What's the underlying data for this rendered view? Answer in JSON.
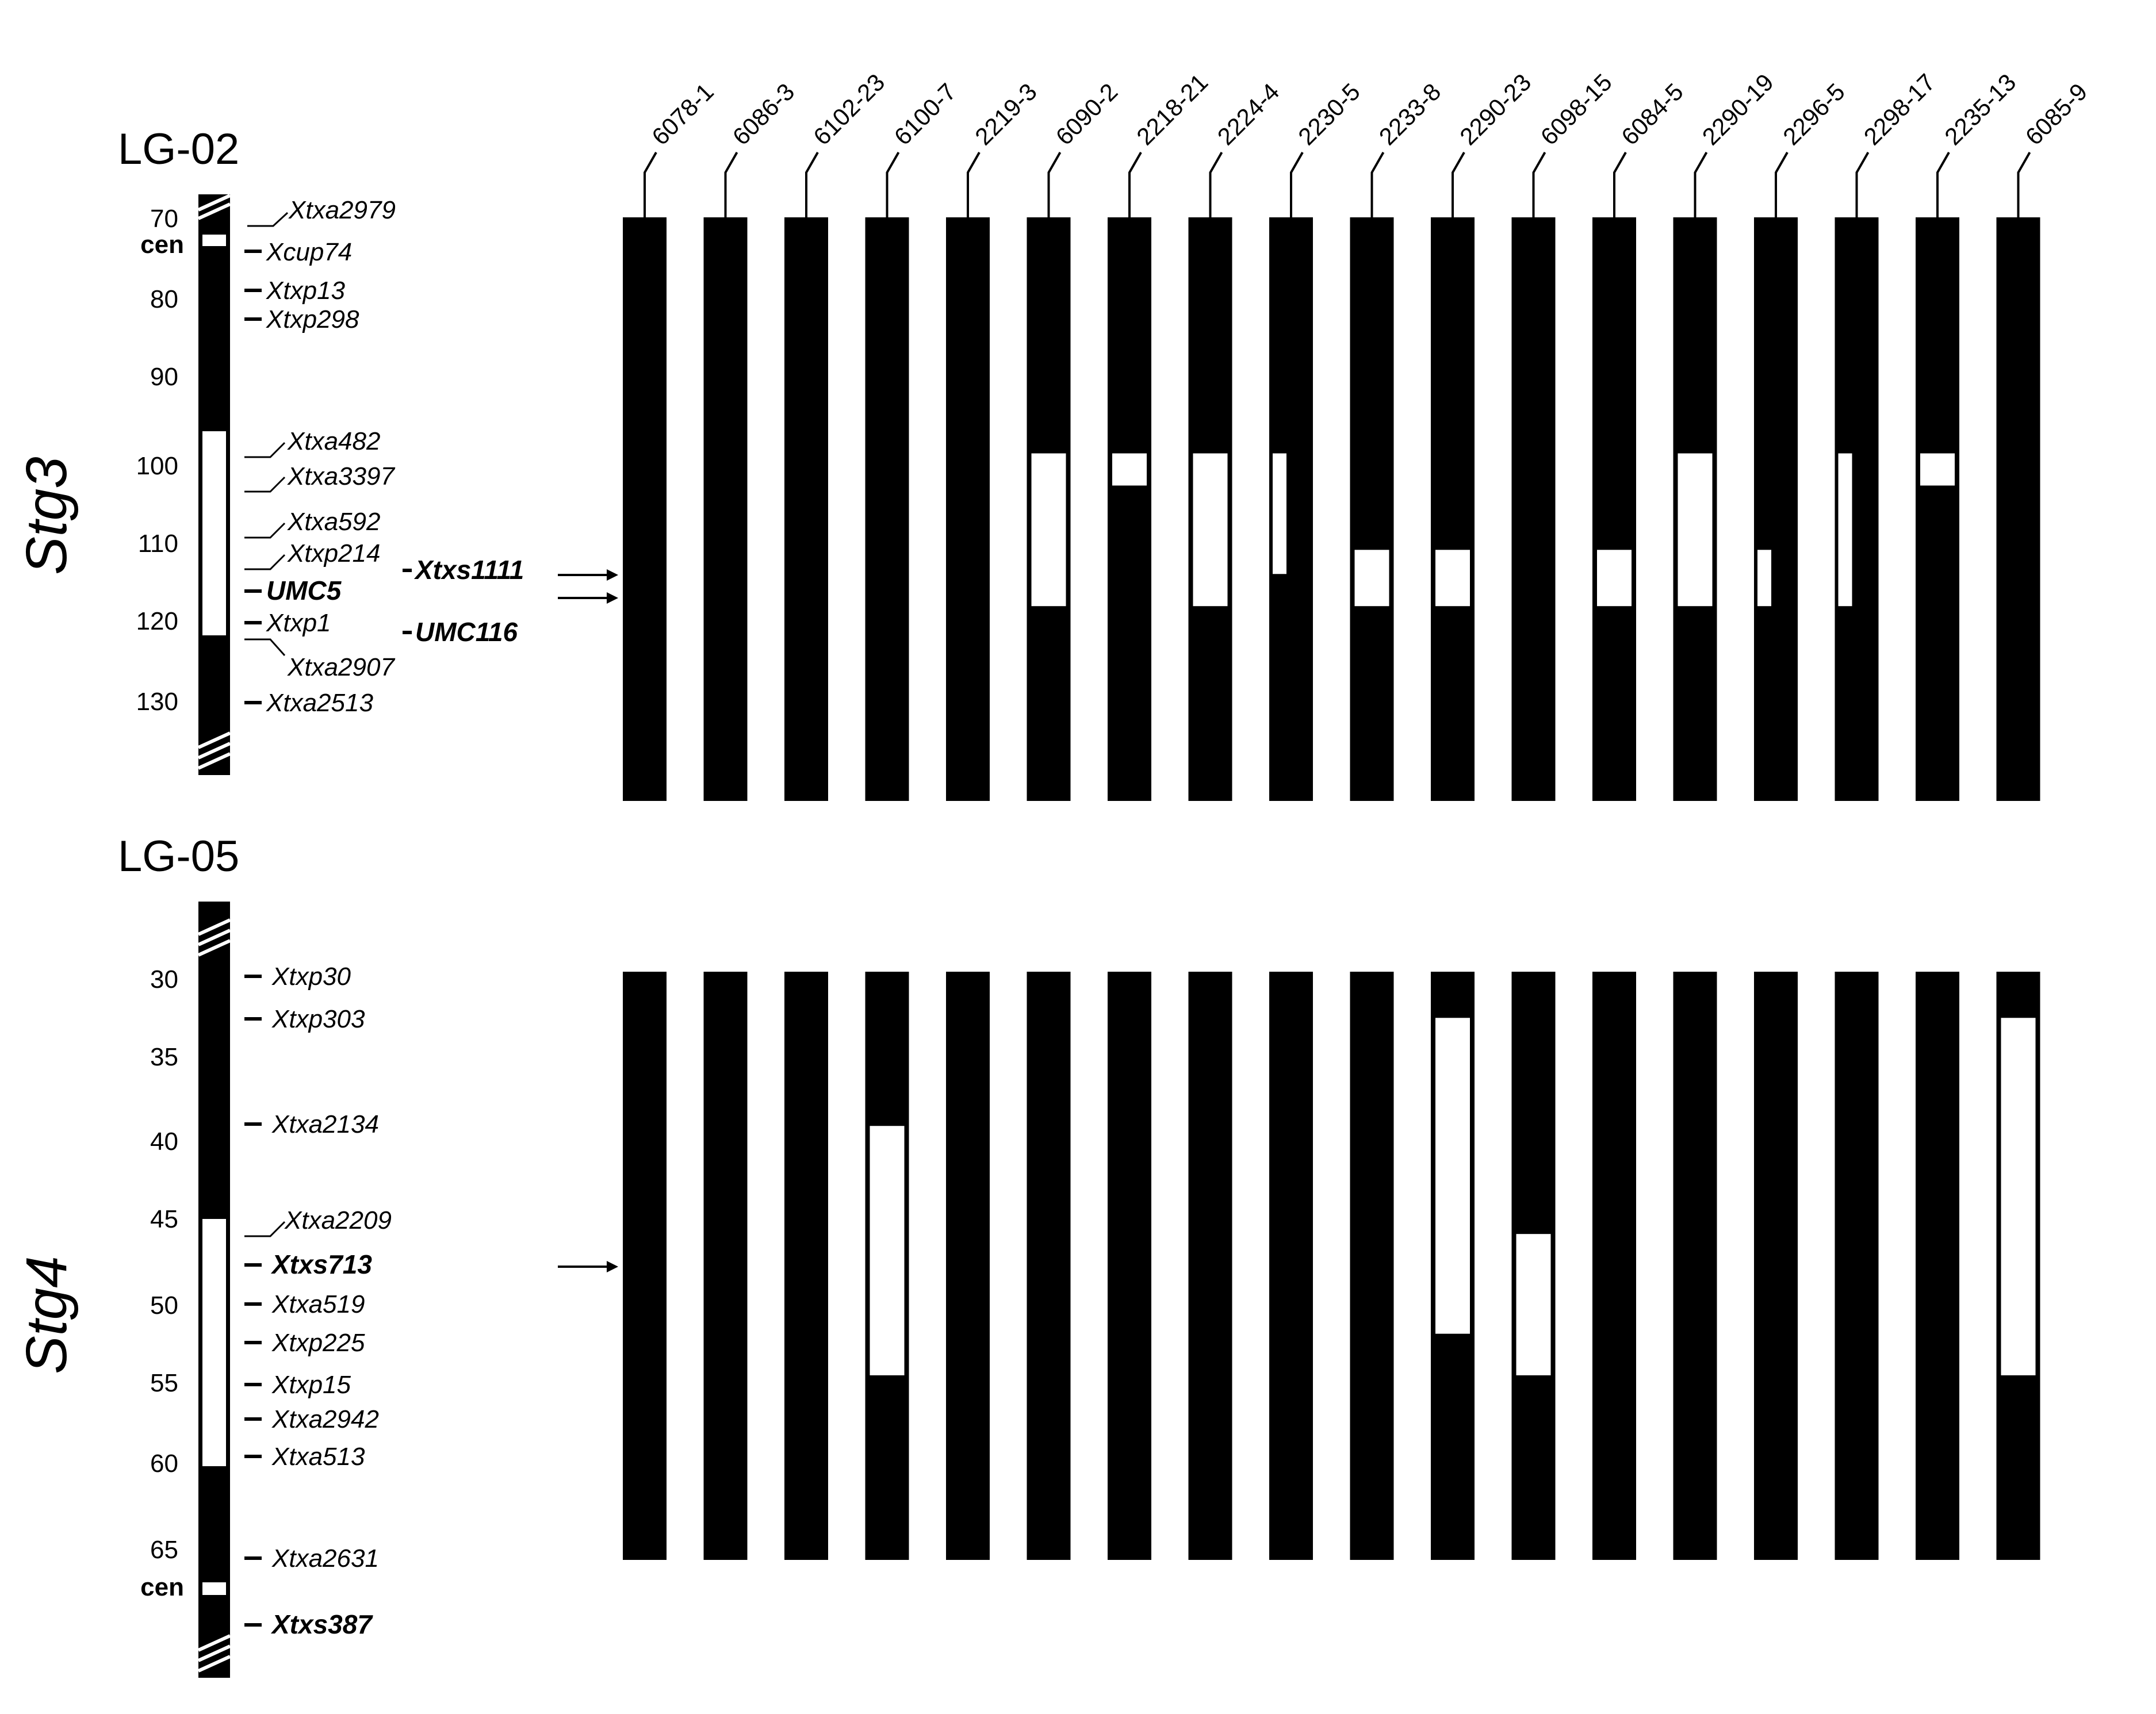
{
  "lines": [
    "6078-1",
    "6086-3",
    "6102-23",
    "6100-7",
    "2219-3",
    "6090-2",
    "2218-21",
    "2224-4",
    "2230-5",
    "2233-8",
    "2290-23",
    "6098-15",
    "6084-5",
    "2290-19",
    "2296-5",
    "2298-17",
    "2235-13",
    "6085-9"
  ],
  "panels": [
    {
      "id": "lg02",
      "title": "LG-02",
      "qtl": "Stg3",
      "ticks": [
        70,
        80,
        90,
        100,
        110,
        120,
        130
      ],
      "cen_label": "cen",
      "markers": [
        {
          "name": "Xtxa2979",
          "bold": false
        },
        {
          "name": "Xcup74",
          "bold": false
        },
        {
          "name": "Xtxp13",
          "bold": false
        },
        {
          "name": "Xtxp298",
          "bold": false
        },
        {
          "name": "Xtxa482",
          "bold": false
        },
        {
          "name": "Xtxa3397",
          "bold": false
        },
        {
          "name": "Xtxa592",
          "bold": false
        },
        {
          "name": "Xtxp214",
          "bold": false
        },
        {
          "name": "UMC5",
          "bold": true
        },
        {
          "name": "Xtxp1",
          "bold": false
        },
        {
          "name": "Xtxa2907",
          "bold": false
        },
        {
          "name": "Xtxa2513",
          "bold": false
        },
        {
          "name": "Xtxs1111",
          "bold": true
        },
        {
          "name": "UMC116",
          "bold": true
        }
      ],
      "qtl_region_cm": [
        96,
        122
      ],
      "introgressions": [
        {
          "line": "6090-2",
          "from_cm": 99,
          "to_cm": 118
        },
        {
          "line": "2218-21",
          "from_cm": 99,
          "to_cm": 103
        },
        {
          "line": "2224-4",
          "from_cm": 99,
          "to_cm": 118
        },
        {
          "line": "2230-5",
          "from_cm": 99,
          "to_cm": 114
        },
        {
          "line": "2233-8",
          "from_cm": 111,
          "to_cm": 118
        },
        {
          "line": "2290-23",
          "from_cm": 111,
          "to_cm": 118
        },
        {
          "line": "6084-5",
          "from_cm": 111,
          "to_cm": 118
        },
        {
          "line": "2290-19",
          "from_cm": 99,
          "to_cm": 118
        },
        {
          "line": "2296-5",
          "from_cm": 111,
          "to_cm": 118
        },
        {
          "line": "2298-17",
          "from_cm": 99,
          "to_cm": 118
        },
        {
          "line": "2235-13",
          "from_cm": 99,
          "to_cm": 103
        }
      ]
    },
    {
      "id": "lg05",
      "title": "LG-05",
      "qtl": "Stg4",
      "ticks": [
        30,
        35,
        40,
        45,
        50,
        55,
        60,
        65
      ],
      "cen_label": "cen",
      "markers": [
        {
          "name": "Xtxp30",
          "bold": false
        },
        {
          "name": "Xtxp303",
          "bold": false
        },
        {
          "name": "Xtxa2134",
          "bold": false
        },
        {
          "name": "Xtxa2209",
          "bold": false
        },
        {
          "name": "Xtxs713",
          "bold": true
        },
        {
          "name": "Xtxa519",
          "bold": false
        },
        {
          "name": "Xtxp225",
          "bold": false
        },
        {
          "name": "Xtxp15",
          "bold": false
        },
        {
          "name": "Xtxa2942",
          "bold": false
        },
        {
          "name": "Xtxa513",
          "bold": false
        },
        {
          "name": "Xtxa2631",
          "bold": false
        },
        {
          "name": "Xtxs387",
          "bold": true
        }
      ],
      "qtl_region_cm": [
        44.5,
        59.5
      ],
      "introgressions": [
        {
          "line": "6100-7",
          "from_cm": 39,
          "to_cm": 54
        },
        {
          "line": "2290-23",
          "from_cm": 32.5,
          "to_cm": 51.5
        },
        {
          "line": "6098-15",
          "from_cm": 45.5,
          "to_cm": 54
        },
        {
          "line": "6085-9",
          "from_cm": 32.5,
          "to_cm": 54
        }
      ]
    }
  ]
}
